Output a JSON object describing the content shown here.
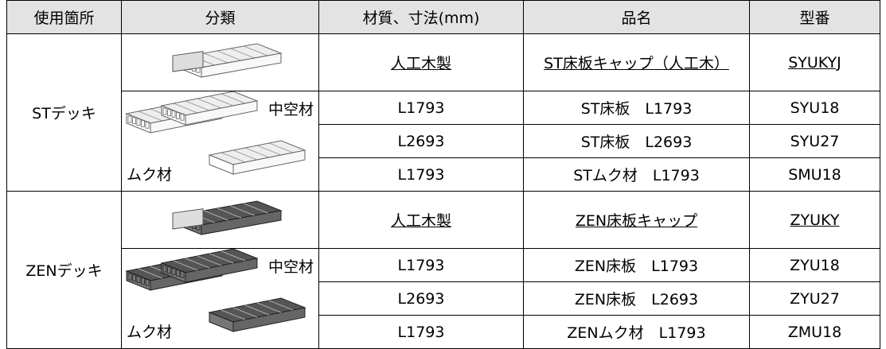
{
  "header": [
    "使用箇所",
    "分類",
    "材質、寸法(mm)",
    "品名",
    "型番"
  ],
  "sections": [
    {
      "usage": "STデッキ",
      "cap": {
        "material": "人工木製",
        "name": "ST床板キャップ（人工木）",
        "code": "SYUKYJ"
      },
      "hollow_label": "中空材",
      "solid_label": "ムク材",
      "rows": [
        [
          "L1793",
          "ST床板　L1793",
          "SYU18"
        ],
        [
          "L2693",
          "ST床板　L2693",
          "SYU27"
        ],
        [
          "L1793",
          "STムク材　L1793",
          "SMU18"
        ]
      ]
    },
    {
      "usage": "ZENデッキ",
      "cap": {
        "material": "人工木製",
        "name": "ZEN床板キャップ",
        "code": "ZYUKY"
      },
      "hollow_label": "中空材",
      "solid_label": "ムク材",
      "rows": [
        [
          "L1793",
          "ZEN床板　L1793",
          "ZYU18"
        ],
        [
          "L2693",
          "ZEN床板　L2693",
          "ZYU27"
        ],
        [
          "L1793",
          "ZENムク材　L1793",
          "ZMU18"
        ]
      ]
    }
  ]
}
